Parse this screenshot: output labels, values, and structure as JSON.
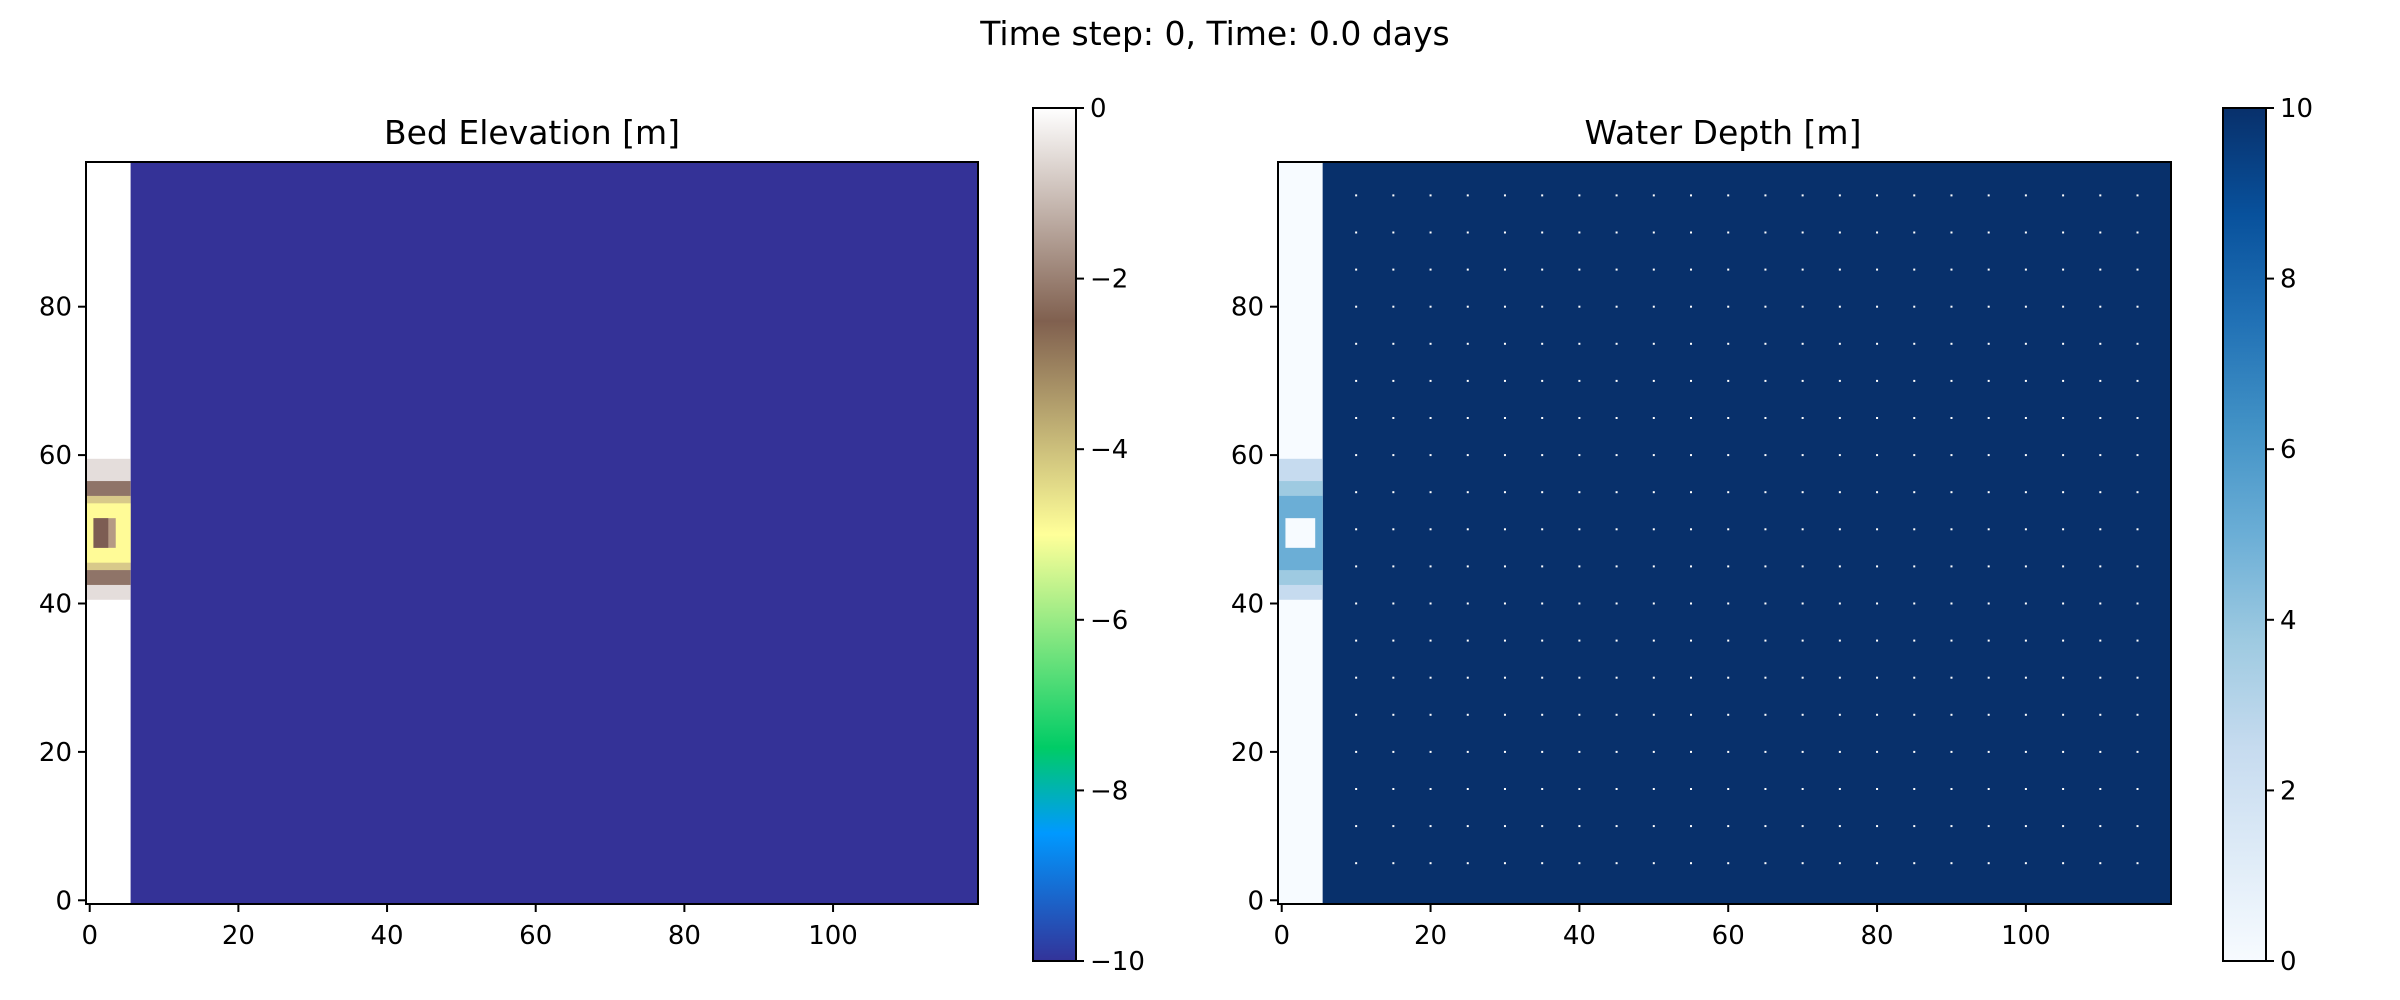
{
  "figure": {
    "suptitle": "Time step: 0, Time: 0.0 days"
  },
  "chart_data": [
    {
      "type": "heatmap",
      "title": "Bed Elevation [m]",
      "xlabel": "",
      "ylabel": "",
      "xlim": [
        0,
        119
      ],
      "ylim": [
        0,
        99
      ],
      "xticks": [
        0,
        20,
        40,
        60,
        80,
        100
      ],
      "yticks": [
        0,
        20,
        40,
        60,
        80
      ],
      "background_value": -10,
      "channel": {
        "x_range": [
          0,
          6
        ],
        "value": 0,
        "inlet_y_range": [
          41,
          59
        ],
        "inlet_center_value": -2.5,
        "inlet_band_value": -5
      },
      "colorbar": {
        "colormap": "terrain",
        "vmin": -10,
        "vmax": 0,
        "ticks": [
          "0",
          "−2",
          "−4",
          "−6",
          "−8",
          "−10"
        ],
        "tick_values": [
          0,
          -2,
          -4,
          -6,
          -8,
          -10
        ]
      },
      "grid": false,
      "colors": {
        "field": "#343297",
        "channel": "#ffffff",
        "inlet_outer": "#8f7468",
        "inlet_band": "#fffb97",
        "inlet_core": "#7d5d53"
      }
    },
    {
      "type": "heatmap",
      "title": "Water Depth [m]",
      "xlabel": "",
      "ylabel": "",
      "xlim": [
        0,
        119
      ],
      "ylim": [
        0,
        99
      ],
      "xticks": [
        0,
        20,
        40,
        60,
        80,
        100
      ],
      "yticks": [
        0,
        20,
        40,
        60,
        80
      ],
      "background_value": 10,
      "channel": {
        "x_range": [
          0,
          6
        ],
        "value": 0,
        "inlet_y_range": [
          41,
          59
        ],
        "inlet_band_value": 5.5,
        "inlet_center_value": 0.5
      },
      "velocity_markers": {
        "x_spacing": 5,
        "y_spacing": 5,
        "x_start": 10,
        "y_start": 5,
        "color": "#ffffff"
      },
      "colorbar": {
        "colormap": "Blues",
        "vmin": 0,
        "vmax": 10,
        "ticks": [
          "10",
          "8",
          "6",
          "4",
          "2",
          "0"
        ],
        "tick_values": [
          10,
          8,
          6,
          4,
          2,
          0
        ]
      },
      "grid": false,
      "colors": {
        "field": "#08306b",
        "channel": "#f7fbff",
        "inlet_band": "#6baed6",
        "inlet_core": "#f7fbff"
      }
    }
  ]
}
